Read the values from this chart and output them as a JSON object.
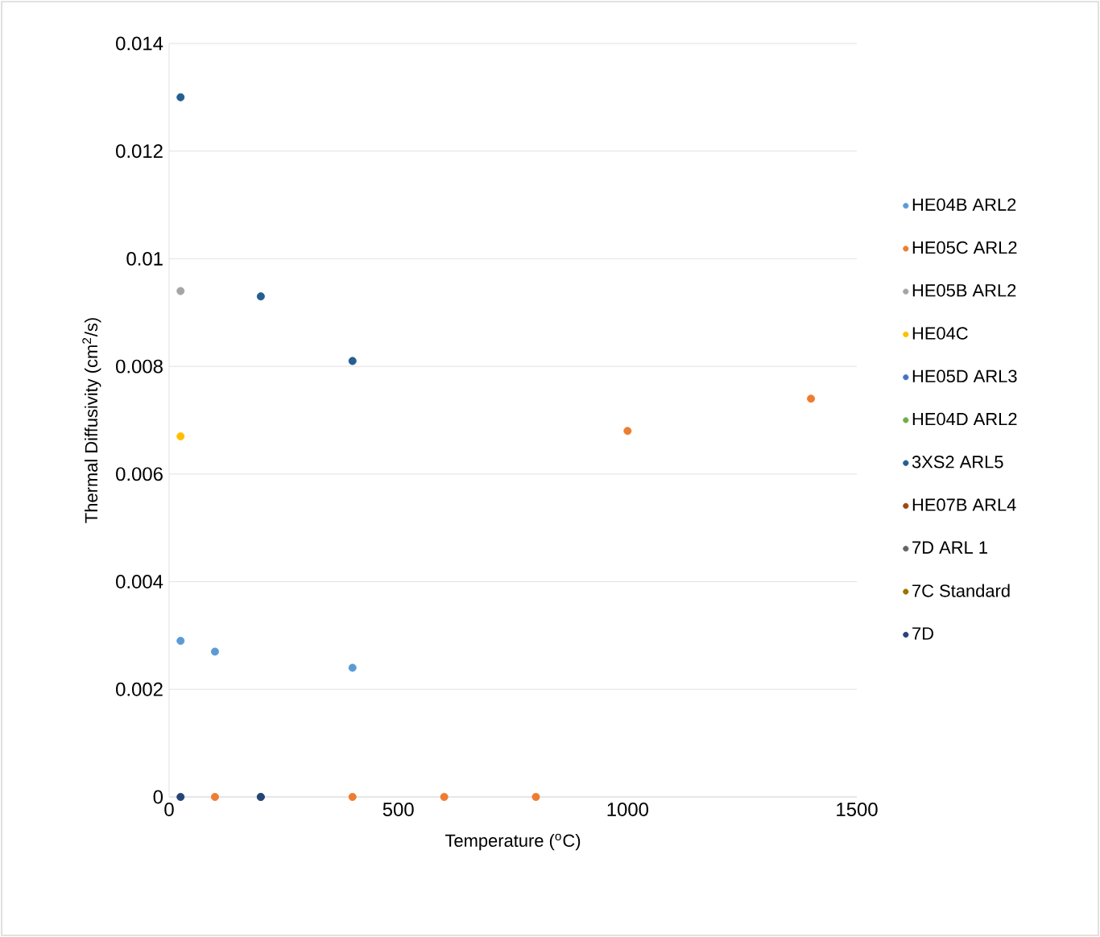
{
  "chart_data": {
    "type": "scatter",
    "xlabel": "Temperature ($^{o}$C)",
    "ylabel": "Thermal Diffusivity (cm$^{2}$/s)",
    "xlim": [
      0,
      1500
    ],
    "xticks": [
      0,
      500,
      1000,
      1500
    ],
    "ylim": [
      0,
      0.014
    ],
    "yticks": [
      0,
      0.002,
      0.004,
      0.006,
      0.008,
      0.01,
      0.012,
      0.014
    ],
    "grid": "y",
    "legend": "right",
    "marker": "circle",
    "series": [
      {
        "name": "HE04B ARL2",
        "color": "#5b9bd5",
        "x": [
          25,
          100,
          400
        ],
        "values": [
          0.0029,
          0.0027,
          0.0024
        ]
      },
      {
        "name": "HE05C ARL2",
        "color": "#ed7d31",
        "x": [
          100,
          400,
          600,
          800,
          1000,
          1400
        ],
        "values": [
          0,
          0,
          0,
          0,
          0.0068,
          0.0074
        ]
      },
      {
        "name": "HE05B ARL2",
        "color": "#a5a5a5",
        "x": [
          25
        ],
        "values": [
          0.0094
        ]
      },
      {
        "name": "HE04C",
        "color": "#ffc000",
        "x": [
          25
        ],
        "values": [
          0.0067
        ]
      },
      {
        "name": "HE05D ARL3",
        "color": "#4472c4"
      },
      {
        "name": "HE04D ARL2",
        "color": "#70ad47",
        "x": [
          200
        ],
        "values": [
          0
        ]
      },
      {
        "name": "3XS2 ARL5",
        "color": "#255e91",
        "x": [
          25,
          200,
          400
        ],
        "values": [
          0.013,
          0.0093,
          0.0081
        ]
      },
      {
        "name": "HE07B ARL4",
        "color": "#9e480e"
      },
      {
        "name": "7D ARL 1",
        "color": "#636363"
      },
      {
        "name": "7C Standard",
        "color": "#997300"
      },
      {
        "name": "7D",
        "color": "#264478",
        "x": [
          25,
          200
        ],
        "values": [
          0,
          0
        ]
      }
    ]
  }
}
